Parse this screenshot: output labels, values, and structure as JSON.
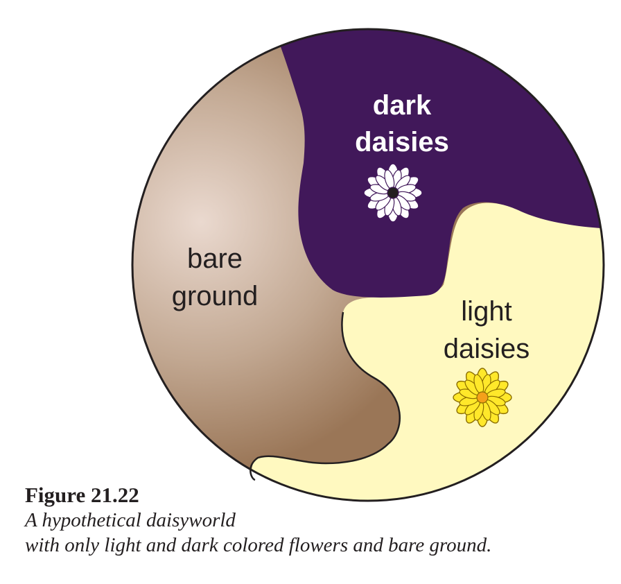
{
  "regions": {
    "dark": {
      "line1": "dark",
      "line2": "daisies",
      "color": "#41185a"
    },
    "bare": {
      "line1": "bare",
      "line2": "ground",
      "color": "#a07c5e",
      "highlight": "#ead9cf"
    },
    "light": {
      "line1": "light",
      "line2": "daisies",
      "color": "#fff9c0"
    }
  },
  "flowers": {
    "dark": {
      "icon": "white-daisy-icon",
      "petal_color": "#ffffff",
      "center_color": "#231f20"
    },
    "light": {
      "icon": "yellow-daisy-icon",
      "petal_color": "#ffe82a",
      "center_color": "#f5a01a"
    }
  },
  "caption": {
    "title": "Figure 21.22",
    "line1": "A hypothetical daisyworld",
    "line2": "with only light and dark colored flowers and bare ground."
  }
}
